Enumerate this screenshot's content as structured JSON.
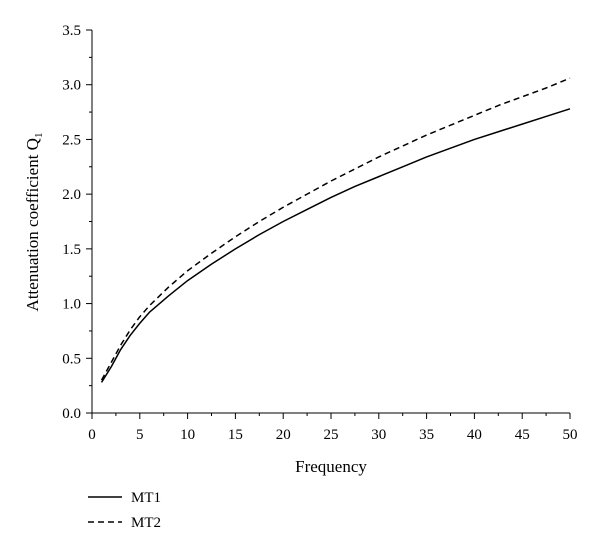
{
  "chart_data": {
    "type": "line",
    "xlabel": "Frequency",
    "ylabel_main": "Attenuation coefficient Q",
    "ylabel_subscript": "1",
    "xlim": [
      0,
      50
    ],
    "ylim": [
      0,
      3.5
    ],
    "x_ticks": [
      "0",
      "5",
      "10",
      "15",
      "20",
      "25",
      "30",
      "35",
      "40",
      "45",
      "50"
    ],
    "y_ticks": [
      "0.0",
      "0.5",
      "1.0",
      "1.5",
      "2.0",
      "2.5",
      "3.0",
      "3.5"
    ],
    "grid": false,
    "legend_position": "bottom-left",
    "x": [
      1,
      2,
      3,
      4,
      5,
      6,
      8,
      10,
      12.5,
      15,
      17.5,
      20,
      22.5,
      25,
      27.5,
      30,
      32.5,
      35,
      37.5,
      40,
      42.5,
      45,
      47.5,
      50
    ],
    "series": [
      {
        "name": "MT1",
        "line_style": "solid",
        "color": "#000000",
        "values": [
          0.28,
          0.42,
          0.58,
          0.71,
          0.82,
          0.92,
          1.07,
          1.21,
          1.36,
          1.5,
          1.63,
          1.75,
          1.86,
          1.97,
          2.07,
          2.16,
          2.25,
          2.34,
          2.42,
          2.5,
          2.57,
          2.64,
          2.71,
          2.78
        ]
      },
      {
        "name": "MT2",
        "line_style": "dashed",
        "color": "#000000",
        "values": [
          0.3,
          0.46,
          0.62,
          0.76,
          0.88,
          0.98,
          1.15,
          1.3,
          1.46,
          1.61,
          1.75,
          1.88,
          2.0,
          2.12,
          2.23,
          2.34,
          2.44,
          2.54,
          2.63,
          2.72,
          2.81,
          2.89,
          2.97,
          3.06
        ]
      }
    ]
  }
}
